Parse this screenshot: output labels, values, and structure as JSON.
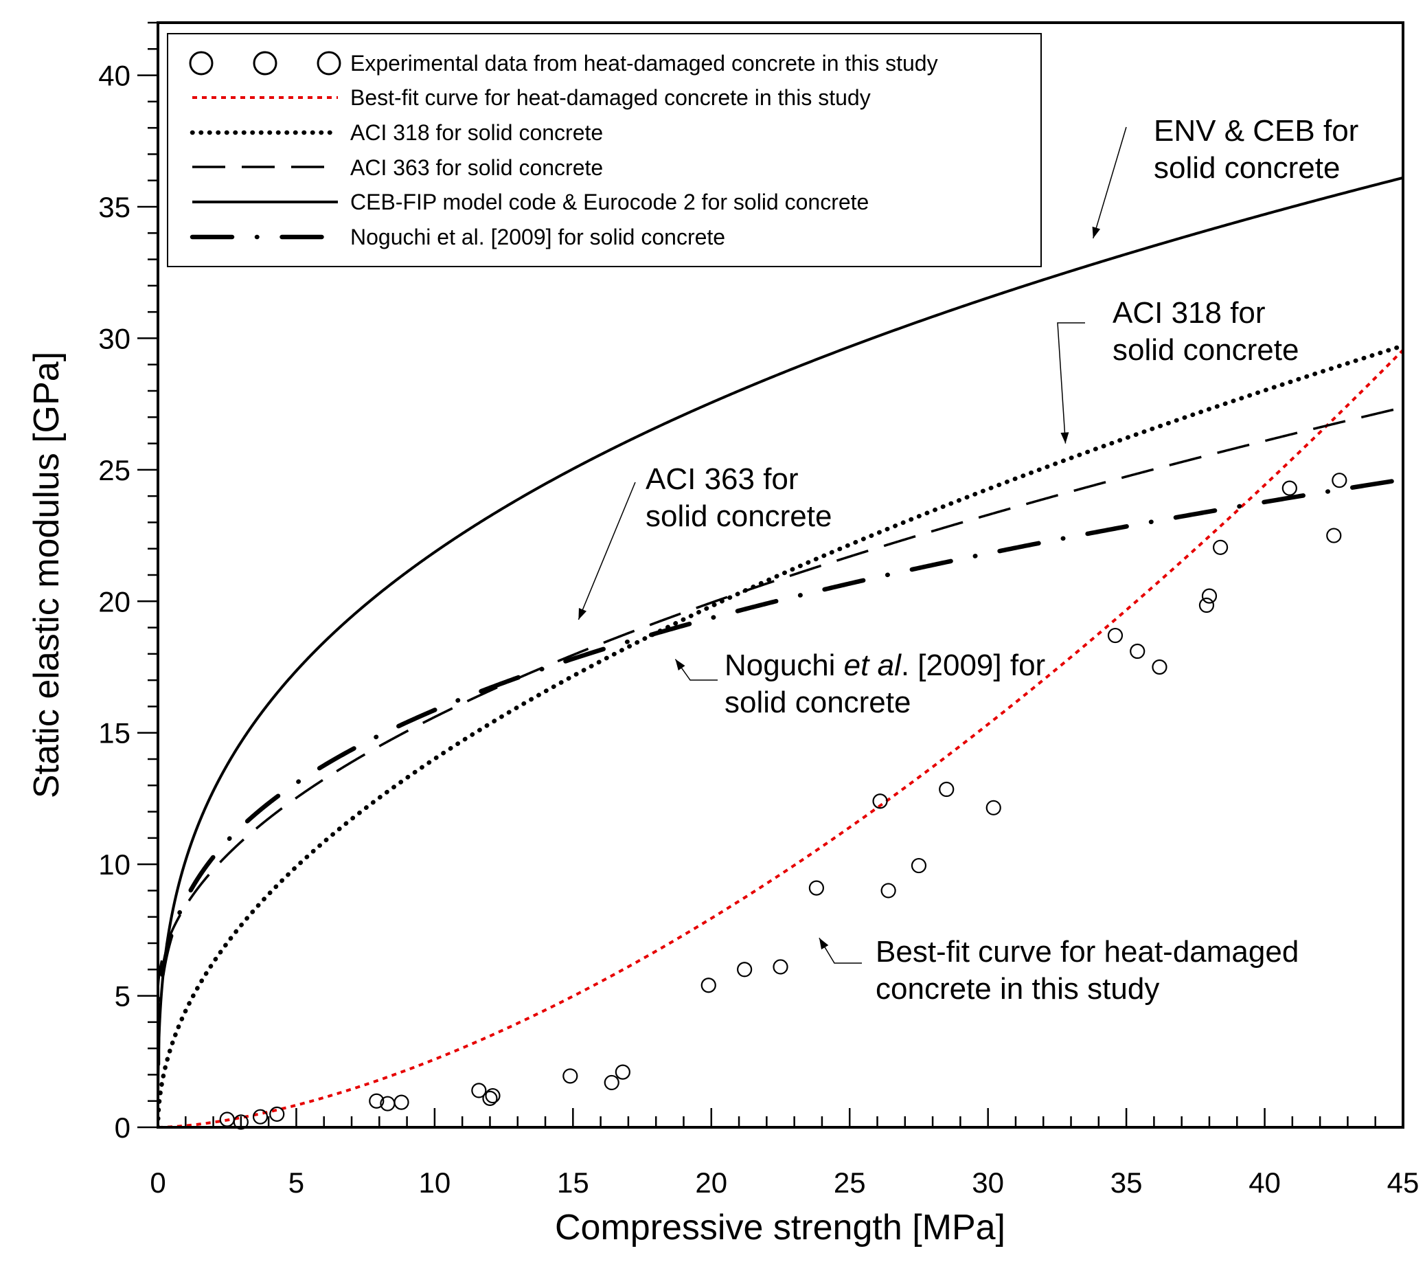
{
  "chart_data": {
    "type": "scatter",
    "xlabel": "Compressive strength [MPa]",
    "ylabel": "Static elastic modulus [GPa]",
    "xlim": [
      0,
      45
    ],
    "ylim": [
      0,
      42
    ],
    "x_ticks": [
      0,
      5,
      10,
      15,
      20,
      25,
      30,
      35,
      40,
      45
    ],
    "y_ticks": [
      0,
      5,
      10,
      15,
      20,
      25,
      30,
      35,
      40
    ],
    "x_tick_labels": [
      "0",
      "5",
      "10",
      "15",
      "20",
      "25",
      "30",
      "35",
      "40",
      "45"
    ],
    "y_tick_labels": [
      "0",
      "5",
      "10",
      "15",
      "20",
      "25",
      "30",
      "35",
      "40"
    ],
    "legend": {
      "position": "top-left",
      "entries": [
        {
          "key": "experimental",
          "label": "Experimental data from heat-damaged concrete in this study",
          "style": "circles"
        },
        {
          "key": "bestfit",
          "label": "Best-fit curve for heat-damaged concrete in this study",
          "style": "red-dotted"
        },
        {
          "key": "aci318",
          "label": "ACI 318 for solid concrete",
          "style": "dotted"
        },
        {
          "key": "aci363",
          "label": "ACI 363 for solid concrete",
          "style": "dashed"
        },
        {
          "key": "ceb",
          "label": "CEB-FIP model code & Eurocode 2 for solid concrete",
          "style": "solid"
        },
        {
          "key": "noguchi",
          "label": "Noguchi et al. [2009] for solid concrete",
          "style": "dash-dot"
        }
      ]
    },
    "annotations": [
      {
        "key": "env",
        "lines": [
          "ENV & CEB for",
          "solid concrete"
        ],
        "points_to": [
          33.8,
          33.8
        ]
      },
      {
        "key": "aci318",
        "lines": [
          "ACI 318 for",
          "solid concrete"
        ],
        "points_to": [
          32.8,
          26.0
        ]
      },
      {
        "key": "aci363",
        "lines": [
          "ACI 363 for",
          "solid concrete"
        ],
        "points_to": [
          15.2,
          19.3
        ]
      },
      {
        "key": "noguchi",
        "lines": [
          "Noguchi et al. [2009] for",
          "solid concrete"
        ],
        "points_to": [
          18.7,
          17.8
        ]
      },
      {
        "key": "bestfit",
        "lines": [
          "Best-fit curve for heat-damaged",
          "concrete in this study"
        ],
        "points_to": [
          23.9,
          7.2
        ]
      }
    ],
    "series": [
      {
        "name": "Experimental data from heat-damaged concrete in this study",
        "type": "scatter",
        "points": [
          [
            2.5,
            0.3
          ],
          [
            3.0,
            0.2
          ],
          [
            3.7,
            0.4
          ],
          [
            4.3,
            0.5
          ],
          [
            7.9,
            1.0
          ],
          [
            8.3,
            0.9
          ],
          [
            8.8,
            0.95
          ],
          [
            11.6,
            1.4
          ],
          [
            12.0,
            1.1
          ],
          [
            12.1,
            1.2
          ],
          [
            14.9,
            1.95
          ],
          [
            16.4,
            1.7
          ],
          [
            16.8,
            2.1
          ],
          [
            19.9,
            5.4
          ],
          [
            21.2,
            6.0
          ],
          [
            22.5,
            6.1
          ],
          [
            23.8,
            9.1
          ],
          [
            26.1,
            12.4
          ],
          [
            26.4,
            9.0
          ],
          [
            27.5,
            9.95
          ],
          [
            28.5,
            12.85
          ],
          [
            30.2,
            12.15
          ],
          [
            34.6,
            18.7
          ],
          [
            35.4,
            18.1
          ],
          [
            36.2,
            17.5
          ],
          [
            37.9,
            19.85
          ],
          [
            38.0,
            20.2
          ],
          [
            38.4,
            22.05
          ],
          [
            40.9,
            24.3
          ],
          [
            42.5,
            22.5
          ],
          [
            42.7,
            24.6
          ]
        ]
      },
      {
        "name": "Best-fit curve for heat-damaged concrete in this study",
        "type": "line",
        "equation": "E = 0.062 * fc^1.62",
        "x_range": [
          0,
          45
        ]
      },
      {
        "name": "ACI 318 for solid concrete",
        "type": "line",
        "equation": "E = 4.43 * fc^0.5",
        "x_range": [
          0,
          45
        ]
      },
      {
        "name": "ACI 363 for solid concrete",
        "type": "line",
        "equation": "E = 3.32 * fc^0.5 + 5.1",
        "x_range": [
          0,
          45
        ]
      },
      {
        "name": "CEB-FIP model code & Eurocode 2 for solid concrete",
        "type": "line",
        "equation": "E = 10.15 * fc^(1/3)",
        "x_range": [
          0,
          45
        ]
      },
      {
        "name": "Noguchi et al. [2009] for solid concrete",
        "type": "line",
        "equation": "E = 6.25 * fc^(1/3) + 2.4",
        "x_range": [
          0,
          45
        ]
      }
    ]
  }
}
